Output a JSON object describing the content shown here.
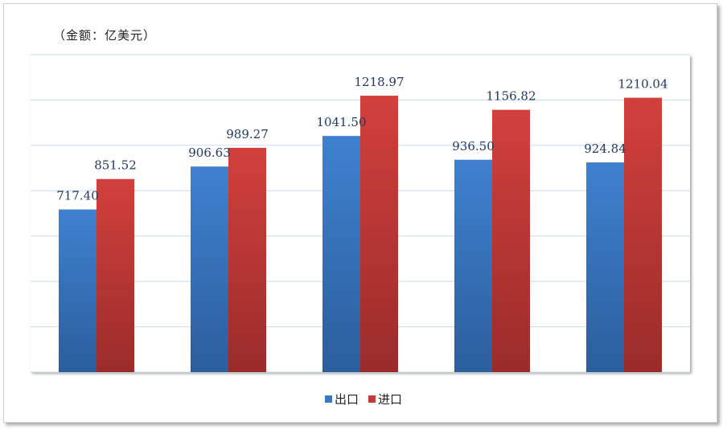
{
  "unit_label": "（金额：亿美元）",
  "chart_data": {
    "type": "bar",
    "categories": [
      "",
      "",
      "",
      "",
      ""
    ],
    "series": [
      {
        "name": "出口",
        "values": [
          717.4,
          906.63,
          1041.5,
          936.5,
          924.84
        ],
        "color": "#3a78c4"
      },
      {
        "name": "进口",
        "values": [
          851.52,
          989.27,
          1218.97,
          1156.82,
          1210.04
        ],
        "color": "#c43c3a"
      }
    ],
    "data_labels": [
      [
        "717.40",
        "906.63",
        "1041.50",
        "936.50",
        "924.84"
      ],
      [
        "851.52",
        "989.27",
        "1218.97",
        "1156.82",
        "1210.04"
      ]
    ],
    "ylim": [
      0,
      1400
    ],
    "grid": true,
    "legend_position": "bottom"
  }
}
